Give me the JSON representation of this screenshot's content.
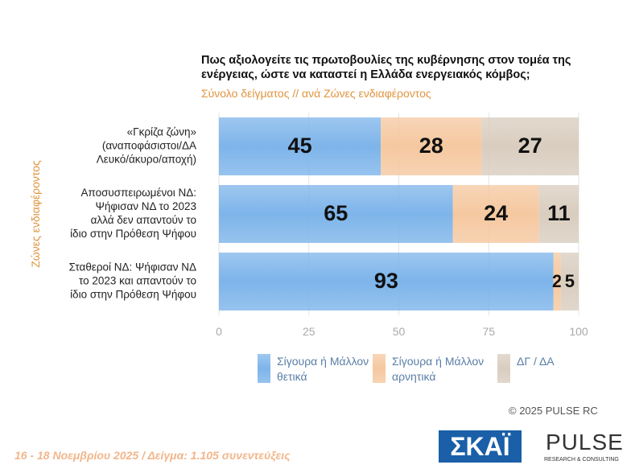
{
  "chart_data": {
    "type": "stacked-bar-horizontal",
    "title": "Πως αξιολογείτε τις πρωτοβουλίες της κυβέρνησης στον τομέα της ενέργειας, ώστε να καταστεί η Ελλάδα ενεργειακός κόμβος;",
    "subtitle": "Σύνολο δείγματος // ανά Ζώνες ενδιαφέροντος",
    "y_label": "Ζώνες ενδιαφέροντος",
    "categories": [
      [
        "«Γκρίζα ζώνη»",
        "(αναποφάσιστοι/ΔΑ",
        "Λευκό/άκυρο/αποχή)"
      ],
      [
        "Αποσυσπειρωμένοι ΝΔ:",
        "Ψήφισαν ΝΔ το 2023",
        "αλλά δεν απαντούν το",
        "ίδιο στην Πρόθεση Ψήφου"
      ],
      [
        "Σταθεροί ΝΔ: Ψήφισαν ΝΔ",
        "το 2023 και απαντούν το",
        "ίδιο στην Πρόθεση Ψήφου"
      ]
    ],
    "series": [
      {
        "name": "Σίγουρα ή Μάλλον θετικά",
        "color": "#7db4ea",
        "values": [
          45,
          65,
          93
        ]
      },
      {
        "name": "Σίγουρα ή Μάλλον αρνητικά",
        "color": "#f5c8a0",
        "values": [
          28,
          24,
          2
        ]
      },
      {
        "name": "ΔΓ / ΔΑ",
        "color": "#d9cdbf",
        "values": [
          27,
          11,
          5
        ]
      }
    ],
    "xlim": [
      0,
      100
    ],
    "xticks": [
      0,
      25,
      50,
      75,
      100
    ],
    "grid": true,
    "footer": "16 - 18 Νοεμβρίου 2025  /  Δείγμα:  1.105 συνεντεύξεις",
    "copyright": "© 2025  PULSE RC",
    "logos": [
      "ΣΚΑΪ",
      "PULSE",
      "RESEARCH & CONSULTING"
    ]
  }
}
